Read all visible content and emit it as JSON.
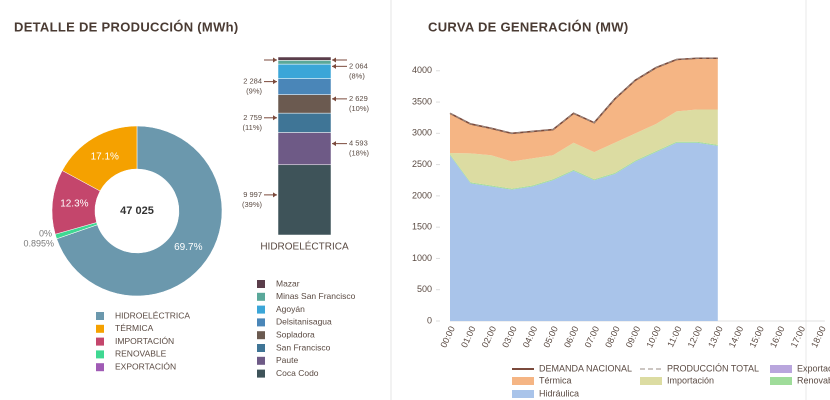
{
  "chart_data": [
    {
      "type": "pie",
      "title": "DETALLE DE PRODUCCIÓN (MWh)",
      "total": {
        "value": 47025,
        "label": "47 025"
      },
      "categories": [
        "HIDROELÉCTRICA",
        "TÉRMICA",
        "IMPORTACIÓN",
        "RENOVABLE",
        "EXPORTACIÓN"
      ],
      "values": [
        69.7,
        17.1,
        12.3,
        0.895,
        0
      ],
      "value_labels": [
        "69.7%",
        "17.1%",
        "12.3%",
        "0.895%",
        "0%"
      ],
      "colors": [
        "#6b98ad",
        "#f5a100",
        "#c4466c",
        "#3fd892",
        "#a05bb5"
      ]
    },
    {
      "type": "bar",
      "stacked": true,
      "categories": [
        "HIDROELÉCTRICA"
      ],
      "series": [
        {
          "name": "Coca Codo",
          "color": "#3e5359",
          "values": [
            9997
          ],
          "value_labels": [
            "9 997"
          ],
          "shares": [
            39
          ],
          "share_labels": [
            "(39%)"
          ]
        },
        {
          "name": "Paute",
          "color": "#6e5a86",
          "values": [
            4593
          ],
          "value_labels": [
            "4 593"
          ],
          "shares": [
            18
          ],
          "share_labels": [
            "(18%)"
          ]
        },
        {
          "name": "San Francisco",
          "color": "#3f7596",
          "values": [
            2759
          ],
          "value_labels": [
            "2 759"
          ],
          "shares": [
            11
          ],
          "share_labels": [
            "(11%)"
          ]
        },
        {
          "name": "Sopladora",
          "color": "#6b5a50",
          "values": [
            2629
          ],
          "value_labels": [
            "2 629"
          ],
          "shares": [
            10
          ],
          "share_labels": [
            "(10%)"
          ]
        },
        {
          "name": "Delsitanisagua",
          "color": "#4a86b8",
          "values": [
            2284
          ],
          "value_labels": [
            "2 284"
          ],
          "shares": [
            9
          ],
          "share_labels": [
            "(9%)"
          ]
        },
        {
          "name": "Agoyán",
          "color": "#3ba6d8",
          "values": [
            2064
          ],
          "value_labels": [
            "2 064"
          ],
          "shares": [
            8
          ],
          "share_labels": [
            "(8%)"
          ]
        },
        {
          "name": "Minas San Francisco",
          "color": "#5aa89a",
          "values": [
            531
          ]
        },
        {
          "name": "Mazar",
          "color": "#5a3d4a",
          "values": [
            478
          ]
        }
      ]
    },
    {
      "type": "area",
      "stacked": true,
      "title": "CURVA DE GENERACIÓN (MW)",
      "x": [
        "00:00",
        "01:00",
        "02:00",
        "03:00",
        "04:00",
        "05:00",
        "06:00",
        "07:00",
        "08:00",
        "09:00",
        "10:00",
        "11:00",
        "12:00",
        "13:00",
        "14:00",
        "15:00",
        "16:00",
        "17:00",
        "18:00"
      ],
      "ylim": [
        0,
        4300
      ],
      "yticks": [
        0,
        500,
        1000,
        1500,
        2000,
        2500,
        3000,
        3500,
        4000
      ],
      "series": [
        {
          "name": "Hidráulica",
          "color": "#a9c4ea",
          "values": [
            2650,
            2200,
            2150,
            2100,
            2150,
            2250,
            2400,
            2250,
            2350,
            2550,
            2700,
            2850,
            2850,
            2800,
            null,
            null,
            null,
            null,
            null
          ]
        },
        {
          "name": "Renovable",
          "color": "#9fdc9a",
          "values": [
            15,
            15,
            15,
            15,
            15,
            15,
            15,
            15,
            15,
            15,
            15,
            15,
            15,
            15,
            null,
            null,
            null,
            null,
            null
          ]
        },
        {
          "name": "Importación",
          "color": "#dcdca2",
          "values": [
            20,
            465,
            485,
            435,
            435,
            385,
            435,
            435,
            485,
            435,
            435,
            485,
            515,
            565,
            null,
            null,
            null,
            null,
            null
          ]
        },
        {
          "name": "Térmica",
          "color": "#f5b584",
          "values": [
            635,
            470,
            430,
            450,
            430,
            410,
            470,
            470,
            700,
            850,
            900,
            830,
            820,
            820,
            null,
            null,
            null,
            null,
            null
          ]
        },
        {
          "name": "Exportación",
          "color": "#b9a6dd",
          "values": [
            0,
            0,
            0,
            0,
            0,
            0,
            0,
            0,
            0,
            0,
            0,
            0,
            0,
            0,
            null,
            null,
            null,
            null,
            null
          ]
        }
      ],
      "lines": [
        {
          "name": "DEMANDA NACIONAL",
          "color": "#7b4a3c",
          "values": [
            3320,
            3150,
            3080,
            3000,
            3030,
            3060,
            3320,
            3170,
            3550,
            3850,
            4050,
            4180,
            4200,
            4200,
            null,
            null,
            null,
            null,
            null
          ]
        },
        {
          "name": "PRODUCCIÓN TOTAL",
          "color": "#9a8c84",
          "dash": true,
          "values": [
            3320,
            3150,
            3080,
            3000,
            3030,
            3060,
            3320,
            3170,
            3550,
            3850,
            4050,
            4180,
            4200,
            4200,
            null,
            null,
            null,
            null,
            null
          ]
        }
      ]
    }
  ]
}
